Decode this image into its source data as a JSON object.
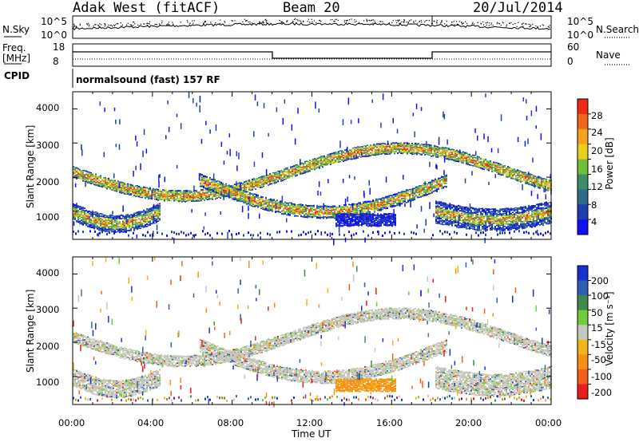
{
  "header": {
    "station": "Adak West (fitACF)",
    "beam": "Beam 20",
    "date": "20/Jul/2014"
  },
  "top_panels": {
    "nsky_label": "N.Sky",
    "nsky_ticks": [
      "10^5",
      "10^0"
    ],
    "nsearch_label": "N.Search",
    "nsearch_ticks": [
      "10^5",
      "10^0"
    ],
    "freq_label": "Freq.",
    "freq_unit": "[MHz]",
    "freq_ticks": [
      "18",
      "8"
    ],
    "nave_label": "Nave",
    "nave_ticks": [
      "60",
      "0"
    ],
    "cpid_label": "CPID",
    "cpid_text": "normalsound (fast) 157 RF"
  },
  "chart_data": [
    {
      "type": "heatmap",
      "name": "power-panel",
      "ylabel": "Slant Range [km]",
      "xlabel": "",
      "yticks": [
        "1000",
        "2000",
        "3000",
        "4000"
      ],
      "ylim": [
        180,
        4500
      ],
      "colorbar": {
        "label": "Power [dB]",
        "ticks": [
          "4",
          "8",
          "12",
          "16",
          "20",
          "24",
          "28"
        ],
        "colors": [
          "#1010f0",
          "#1f3fb0",
          "#2e6a8a",
          "#3a8f6a",
          "#6fbf3a",
          "#e6d21e",
          "#f5a21e",
          "#f2661a",
          "#ee2a14"
        ]
      }
    },
    {
      "type": "heatmap",
      "name": "velocity-panel",
      "ylabel": "Slant Range [km]",
      "xlabel": "Time UT",
      "yticks": [
        "1000",
        "2000",
        "3000",
        "4000"
      ],
      "ylim": [
        180,
        4500
      ],
      "xticks": [
        "00:00",
        "04:00",
        "08:00",
        "12:00",
        "16:00",
        "20:00",
        "00:00"
      ],
      "colorbar": {
        "label": "Velocity [m s⁻¹]",
        "ticks": [
          "200",
          "100",
          "50",
          "15",
          "-15",
          "-50",
          "-100",
          "-200"
        ],
        "colors": [
          "#1a2fd0",
          "#2f5fb5",
          "#3f8a4a",
          "#6fcc3a",
          "#c8c8c2",
          "#f3b31b",
          "#f59115",
          "#f0601a",
          "#e81e1e"
        ]
      }
    }
  ]
}
